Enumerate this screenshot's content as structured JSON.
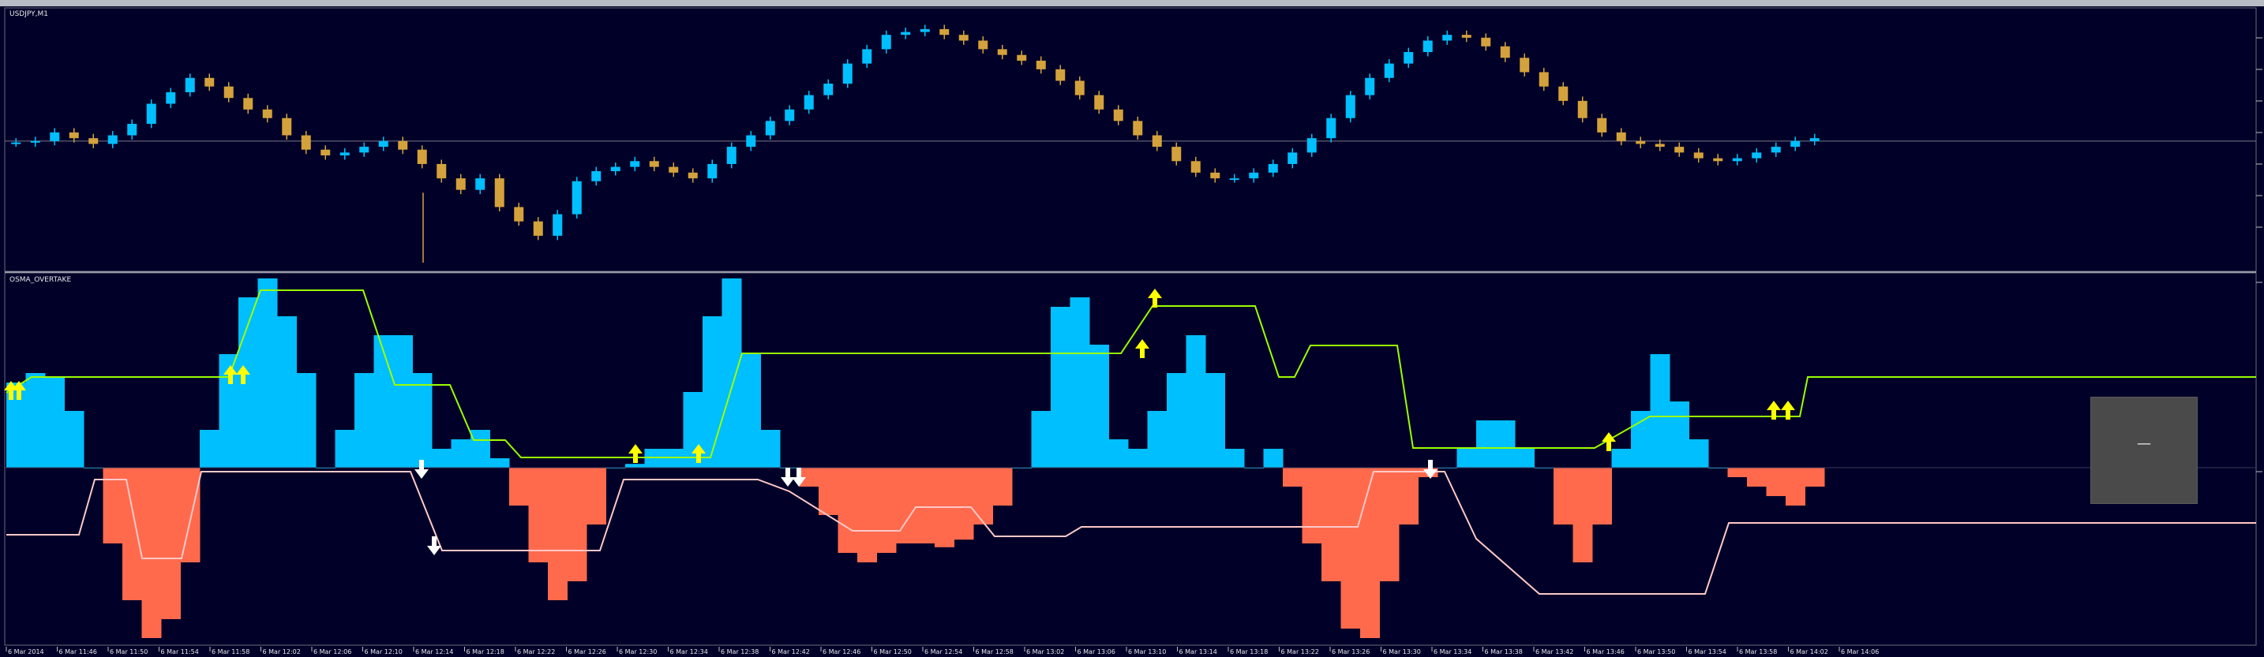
{
  "window": {
    "symbol_label": "USDJPY,M1",
    "indicator_label": "OSMA_OVERTAKE",
    "box_label": "—"
  },
  "colors": {
    "background": "#000028",
    "bull": "#00bfff",
    "bear": "#d4a23c",
    "hist_pos": "#00bfff",
    "hist_neg": "#ff6a4d",
    "up_line": "#9aff00",
    "down_line": "#ffc8c8",
    "up_arrow": "#ffff00",
    "down_arrow": "#ffffff"
  },
  "time_axis": {
    "labels": [
      "6 Mar 2014",
      "6 Mar 11:46",
      "6 Mar 11:50",
      "6 Mar 11:54",
      "6 Mar 11:58",
      "6 Mar 12:02",
      "6 Mar 12:06",
      "6 Mar 12:10",
      "6 Mar 12:14",
      "6 Mar 12:18",
      "6 Mar 12:22",
      "6 Mar 12:26",
      "6 Mar 12:30",
      "6 Mar 12:34",
      "6 Mar 12:38",
      "6 Mar 12:42",
      "6 Mar 12:46",
      "6 Mar 12:50",
      "6 Mar 12:54",
      "6 Mar 12:58",
      "6 Mar 13:02",
      "6 Mar 13:06",
      "6 Mar 13:10",
      "6 Mar 13:14",
      "6 Mar 13:18",
      "6 Mar 13:22",
      "6 Mar 13:26",
      "6 Mar 13:30",
      "6 Mar 13:34",
      "6 Mar 13:38",
      "6 Mar 13:42",
      "6 Mar 13:46",
      "6 Mar 13:50",
      "6 Mar 13:54",
      "6 Mar 13:58",
      "6 Mar 14:02",
      "6 Mar 14:06"
    ]
  },
  "chart_data": [
    {
      "type": "candlestick",
      "title": "USDJPY,M1",
      "close_path": [
        0.55,
        0.56,
        0.62,
        0.58,
        0.54,
        0.6,
        0.68,
        0.82,
        0.9,
        1.0,
        0.94,
        0.86,
        0.78,
        0.72,
        0.6,
        0.5,
        0.46,
        0.48,
        0.52,
        0.56,
        0.5,
        0.4,
        0.3,
        0.22,
        0.3,
        0.1,
        0.0,
        -0.1,
        0.05,
        0.28,
        0.35,
        0.38,
        0.42,
        0.38,
        0.34,
        0.3,
        0.4,
        0.52,
        0.6,
        0.7,
        0.78,
        0.88,
        0.96,
        1.1,
        1.2,
        1.3,
        1.32,
        1.34,
        1.3,
        1.26,
        1.2,
        1.16,
        1.12,
        1.06,
        0.98,
        0.88,
        0.78,
        0.7,
        0.6,
        0.52,
        0.42,
        0.34,
        0.3,
        0.3,
        0.34,
        0.4,
        0.48,
        0.58,
        0.72,
        0.88,
        1.0,
        1.1,
        1.18,
        1.26,
        1.3,
        1.28,
        1.22,
        1.14,
        1.04,
        0.94,
        0.84,
        0.72,
        0.62,
        0.56,
        0.54,
        0.52,
        0.48,
        0.44,
        0.42,
        0.44,
        0.48,
        0.52,
        0.56,
        0.58
      ],
      "series_count": 1
    },
    {
      "type": "bar",
      "title": "OSMA_OVERTAKE",
      "histogram": [
        0.45,
        0.5,
        0.48,
        0.3,
        0.0,
        -0.4,
        -0.7,
        -0.9,
        -0.8,
        -0.5,
        0.2,
        0.6,
        0.9,
        1.0,
        0.8,
        0.5,
        0.0,
        0.2,
        0.5,
        0.7,
        0.7,
        0.5,
        0.1,
        0.15,
        0.2,
        0.05,
        -0.2,
        -0.5,
        -0.7,
        -0.6,
        -0.3,
        0.0,
        0.02,
        0.1,
        0.1,
        0.4,
        0.8,
        1.0,
        0.6,
        0.2,
        0.0,
        -0.1,
        -0.25,
        -0.45,
        -0.5,
        -0.45,
        -0.4,
        -0.4,
        -0.42,
        -0.38,
        -0.3,
        -0.2,
        0.0,
        0.3,
        0.85,
        0.9,
        0.65,
        0.15,
        0.1,
        0.3,
        0.5,
        0.7,
        0.5,
        0.1,
        0.0,
        0.1,
        -0.1,
        -0.4,
        -0.6,
        -0.85,
        -0.9,
        -0.6,
        -0.3,
        -0.05,
        0.0,
        0.1,
        0.25,
        0.25,
        0.1,
        0.0,
        -0.3,
        -0.5,
        -0.3,
        0.1,
        0.3,
        0.6,
        0.35,
        0.15,
        0.0,
        -0.05,
        -0.1,
        -0.15,
        -0.2,
        -0.1
      ]
    }
  ]
}
